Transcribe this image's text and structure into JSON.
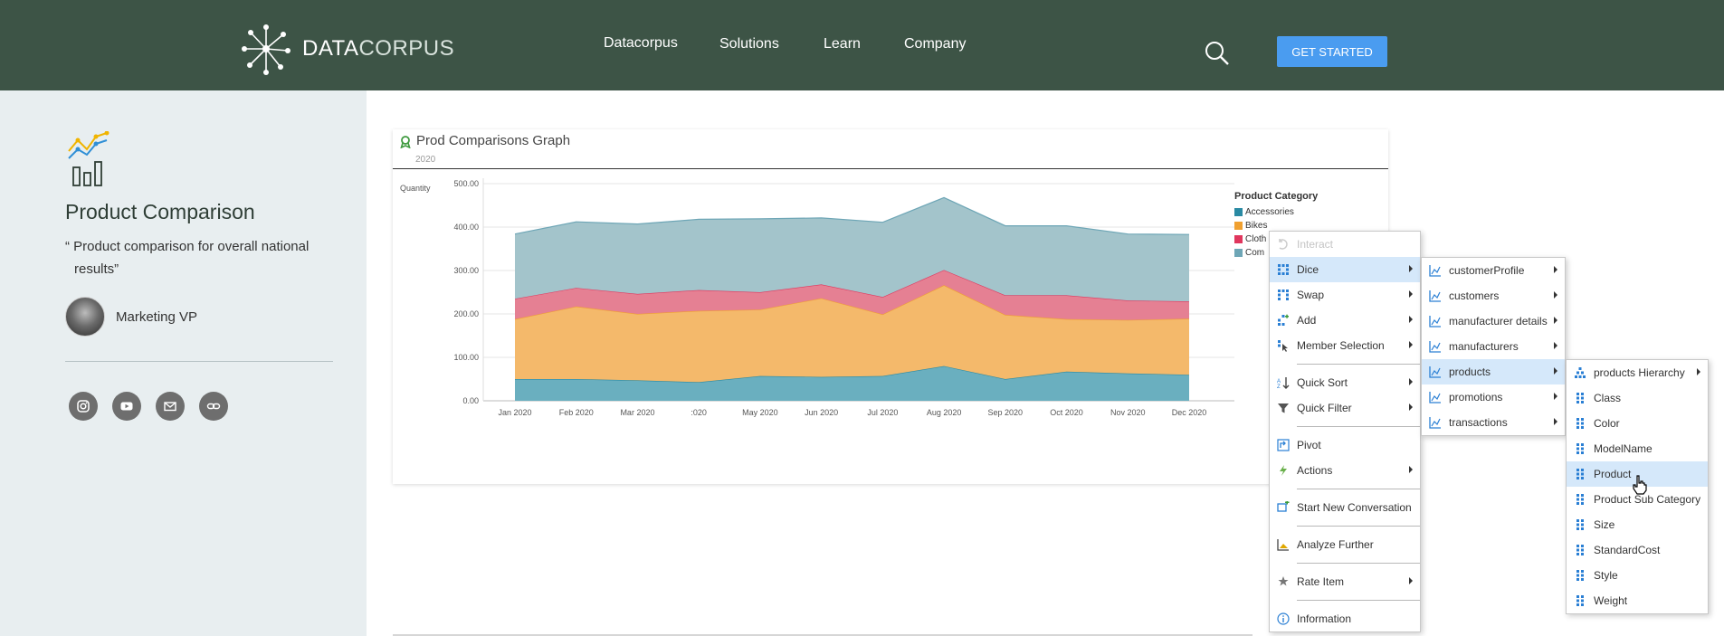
{
  "header": {
    "logo_bold": "DATA",
    "logo_light": "CORPUS",
    "nav": [
      "Datacorpus",
      "Solutions",
      "Learn",
      "Company"
    ],
    "cta": "GET STARTED"
  },
  "sidebar": {
    "title": "Product Comparison",
    "quote_line1": "“ Product comparison for overall national",
    "quote_line2": "results”",
    "author": "Marketing VP",
    "social_icons": [
      "instagram-icon",
      "youtube-icon",
      "mail-icon",
      "link-icon"
    ]
  },
  "card": {
    "title": "Prod Comparisons Graph",
    "subtitle": "2020",
    "legend_title": "Product Category",
    "legend_items": [
      "Accessories",
      "Bikes",
      "Cloth",
      "Com"
    ]
  },
  "chart_data": {
    "type": "area",
    "stacked": true,
    "ylabel": "Quantity",
    "ylim": [
      0,
      500
    ],
    "yticks": [
      "500.00",
      "400.00",
      "300.00",
      "200.00",
      "100.00",
      "0.00"
    ],
    "categories": [
      "Jan 2020",
      "Feb 2020",
      "Mar 2020",
      ":020",
      "May 2020",
      "Jun 2020",
      "Jul 2020",
      "Aug 2020",
      "Sep 2020",
      "Oct 2020",
      "Nov 2020",
      "Dec 2020"
    ],
    "series": [
      {
        "name": "Accessories",
        "color": "#6aafbf",
        "values": [
          50,
          50,
          47,
          43,
          57,
          55,
          57,
          80,
          50,
          67,
          63,
          60
        ]
      },
      {
        "name": "Bikes",
        "color": "#f4b96b",
        "values": [
          138,
          167,
          153,
          164,
          153,
          181,
          142,
          186,
          148,
          121,
          123,
          129
        ]
      },
      {
        "name": "Cloth",
        "color": "#e58093",
        "values": [
          47,
          43,
          46,
          48,
          40,
          32,
          40,
          35,
          45,
          55,
          45,
          40
        ]
      },
      {
        "name": "Com",
        "color": "#a3c4cb",
        "values": [
          149,
          152,
          161,
          163,
          169,
          153,
          172,
          167,
          160,
          160,
          153,
          154
        ]
      }
    ],
    "legend_position": "right"
  },
  "context_menu": {
    "main": [
      {
        "label": "Interact",
        "disabled": true
      },
      {
        "label": "Dice",
        "submenu": true,
        "highlight": true
      },
      {
        "label": "Swap",
        "submenu": true
      },
      {
        "label": "Add",
        "submenu": true
      },
      {
        "label": "Member Selection",
        "submenu": true
      },
      {
        "label": "Quick Sort",
        "submenu": true
      },
      {
        "label": "Quick Filter",
        "submenu": true
      },
      {
        "label": "Pivot"
      },
      {
        "label": "Actions",
        "submenu": true
      },
      {
        "label": "Start New Conversation"
      },
      {
        "label": "Analyze Further"
      },
      {
        "label": "Rate Item",
        "submenu": true
      },
      {
        "label": "Information"
      }
    ],
    "dice": [
      "customerProfile",
      "customers",
      "manufacturer details",
      "manufacturers",
      "products",
      "promotions",
      "transactions"
    ],
    "products": [
      "products Hierarchy",
      "Class",
      "Color",
      "ModelName",
      "Product",
      "Product Sub Category",
      "Size",
      "StandardCost",
      "Style",
      "Weight"
    ]
  }
}
